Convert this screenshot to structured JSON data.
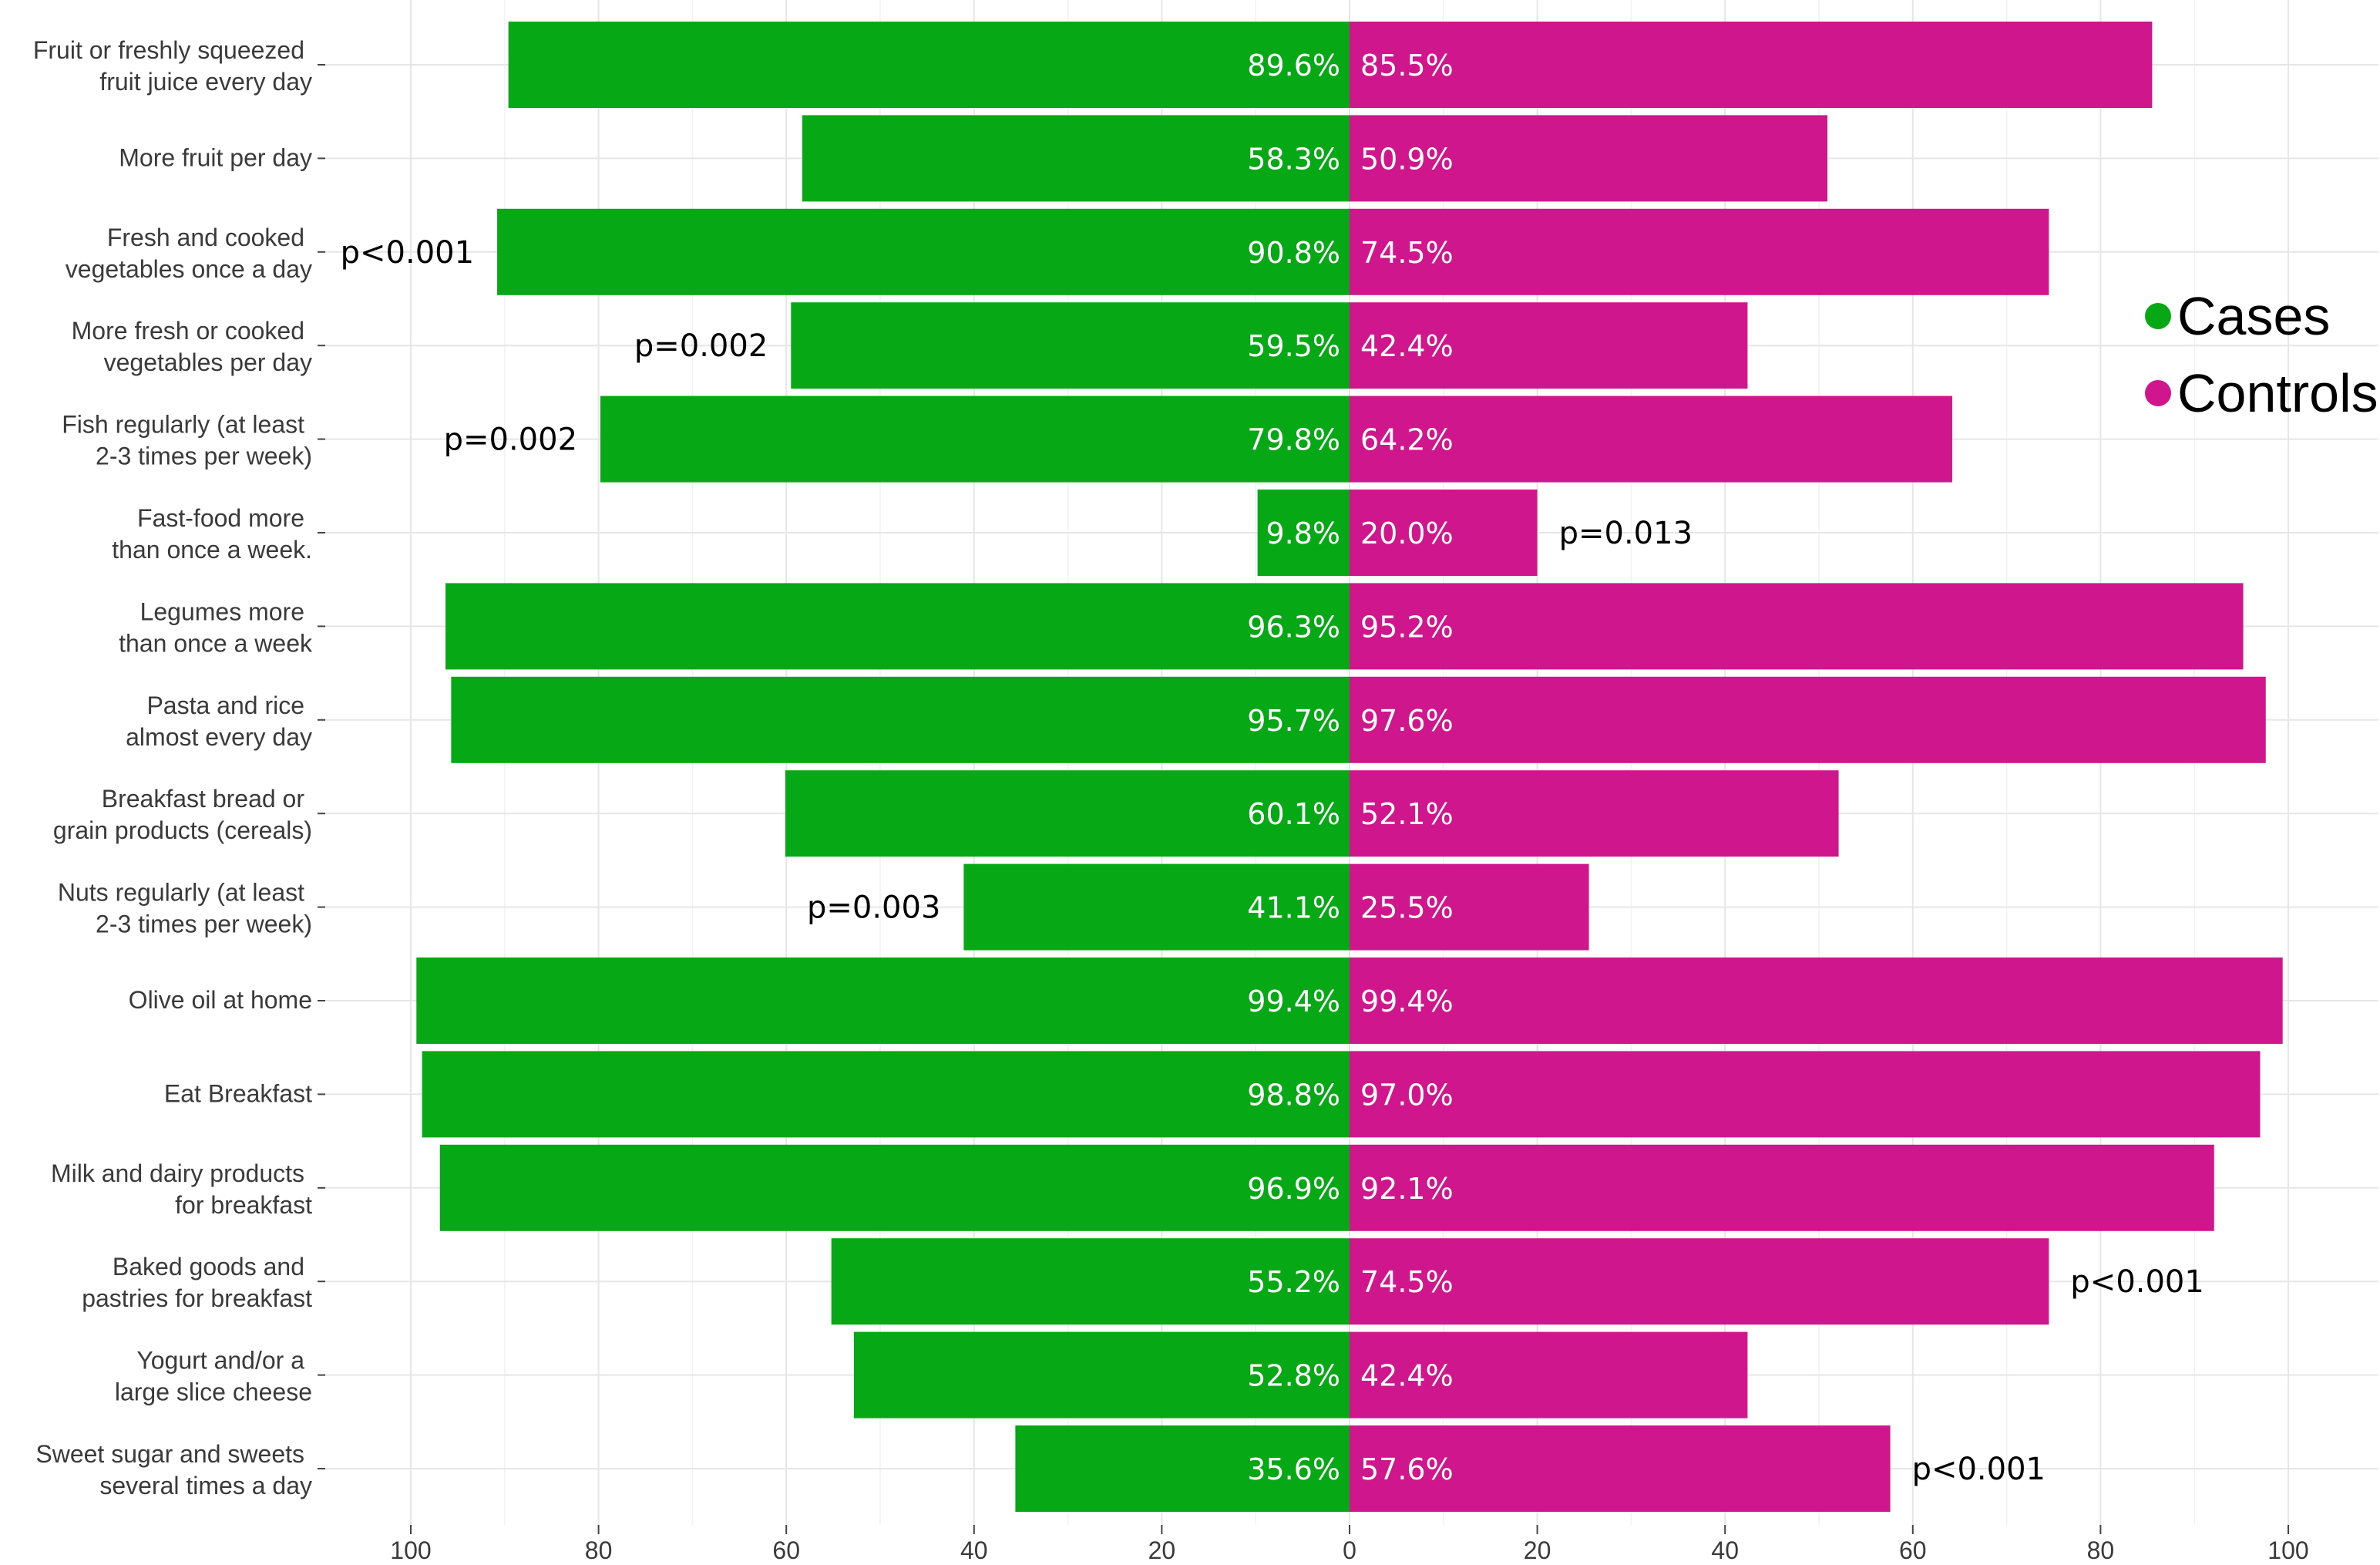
{
  "chart_data": {
    "type": "bar",
    "orientation": "horizontal-back-to-back",
    "categories": [
      [
        "Fruit or freshly squeezed",
        "fruit juice every day"
      ],
      [
        "More fruit  per day"
      ],
      [
        "Fresh and cooked",
        "vegetables once a day"
      ],
      [
        "More fresh or cooked",
        "vegetables per day"
      ],
      [
        "Fish regularly (at least",
        "2-3 times per week)"
      ],
      [
        "Fast-food more",
        "than once a week."
      ],
      [
        "Legumes more",
        "than once a week"
      ],
      [
        "Pasta and rice",
        "almost every day"
      ],
      [
        "Breakfast bread or",
        "grain products (cereals)"
      ],
      [
        "Nuts regularly (at least",
        "2-3 times per week)"
      ],
      [
        "Olive oil at home"
      ],
      [
        "Eat Breakfast"
      ],
      [
        "Milk and dairy products",
        "for breakfast"
      ],
      [
        "Baked goods and",
        "pastries for breakfast"
      ],
      [
        "Yogurt and/or a",
        "large slice cheese"
      ],
      [
        "Sweet sugar and sweets",
        "several times a day"
      ]
    ],
    "series": [
      {
        "name": "Cases",
        "color": "#06a815",
        "values": [
          89.6,
          58.3,
          90.8,
          59.5,
          79.8,
          9.8,
          96.3,
          95.7,
          60.1,
          41.1,
          99.4,
          98.8,
          96.9,
          55.2,
          52.8,
          35.6
        ],
        "labels": [
          "89.6%",
          "58.3%",
          "90.8%",
          "59.5%",
          "79.8%",
          "9.8%",
          "96.3%",
          "95.7%",
          "60.1%",
          "41.1%",
          "99.4%",
          "98.8%",
          "96.9%",
          "55.2%",
          "52.8%",
          "35.6%"
        ]
      },
      {
        "name": "Controls",
        "color": "#d0168c",
        "values": [
          85.5,
          50.9,
          74.5,
          42.4,
          64.2,
          20.0,
          95.2,
          97.6,
          52.1,
          25.5,
          99.4,
          97.0,
          92.1,
          74.5,
          42.4,
          57.6
        ],
        "labels": [
          "85.5%",
          "50.9%",
          "74.5%",
          "42.4%",
          "64.2%",
          "20.0%",
          "95.2%",
          "97.6%",
          "52.1%",
          "25.5%",
          "99.4%",
          "97.0%",
          "92.1%",
          "74.5%",
          "42.4%",
          "57.6%"
        ]
      }
    ],
    "annotations": [
      {
        "category_index": 2,
        "side": "Cases",
        "text": "p<0.001"
      },
      {
        "category_index": 3,
        "side": "Cases",
        "text": "p=0.002"
      },
      {
        "category_index": 4,
        "side": "Cases",
        "text": "p=0.002"
      },
      {
        "category_index": 5,
        "side": "Controls",
        "text": "p=0.013"
      },
      {
        "category_index": 9,
        "side": "Cases",
        "text": "p=0.003"
      },
      {
        "category_index": 13,
        "side": "Controls",
        "text": "p<0.001"
      },
      {
        "category_index": 15,
        "side": "Controls",
        "text": "p<0.001"
      }
    ],
    "x_ticks": [
      100,
      80,
      60,
      40,
      20,
      0,
      20,
      40,
      60,
      80,
      100
    ],
    "xlim": [
      -100,
      100
    ],
    "title": "",
    "xlabel": "",
    "ylabel": "",
    "grid": true,
    "legend": {
      "position": "right",
      "entries": [
        "Cases",
        "Controls"
      ]
    }
  }
}
